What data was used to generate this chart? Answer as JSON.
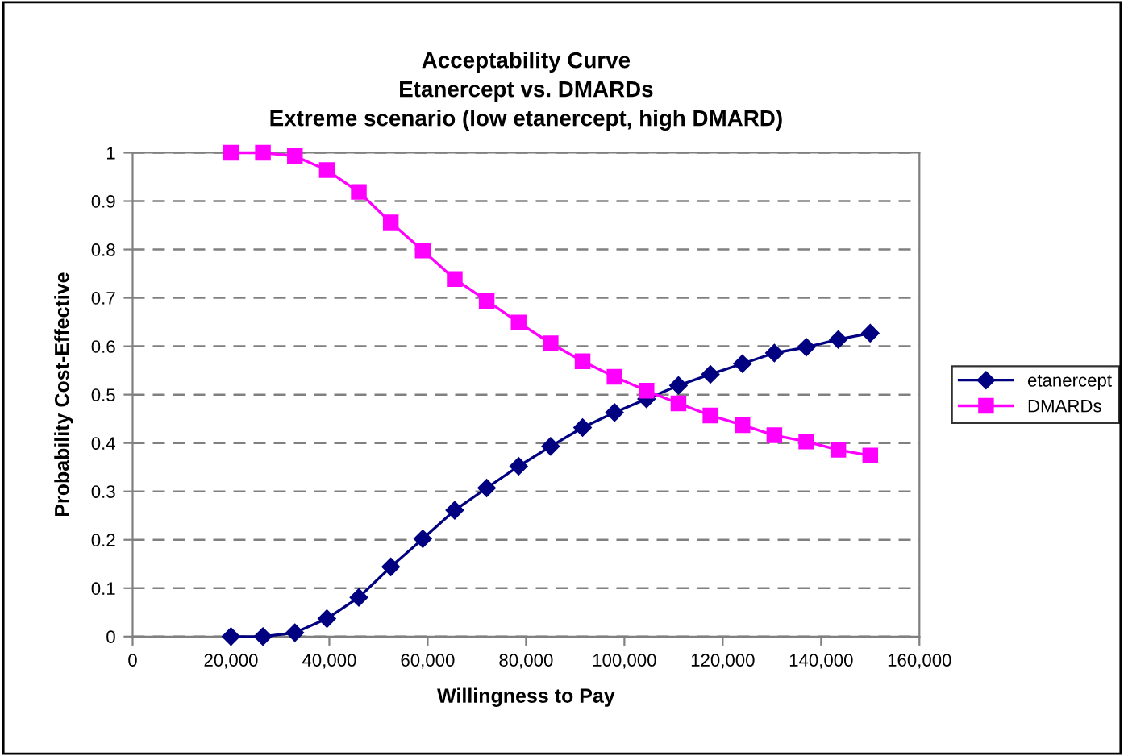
{
  "chart_data": {
    "type": "line",
    "title": "Acceptability Curve\nEtanercept vs. DMARDs\nExtreme scenario (low etanercept, high DMARD)",
    "xlabel": "Willingness to Pay",
    "ylabel": "Probability Cost-Effective",
    "x": [
      20000,
      26500,
      33000,
      39500,
      46000,
      52500,
      59000,
      65500,
      72000,
      78500,
      85000,
      91500,
      98000,
      104500,
      111000,
      117500,
      124000,
      130500,
      137000,
      143500,
      150000
    ],
    "series": [
      {
        "name": "etanercept",
        "color": "#000080",
        "marker": "diamond",
        "values": [
          0,
          0,
          0.008,
          0.037,
          0.081,
          0.144,
          0.202,
          0.261,
          0.307,
          0.352,
          0.393,
          0.432,
          0.463,
          0.491,
          0.519,
          0.542,
          0.564,
          0.586,
          0.598,
          0.614,
          0.627
        ]
      },
      {
        "name": "DMARDs",
        "color": "#ff00ff",
        "marker": "square",
        "values": [
          1,
          1,
          0.993,
          0.964,
          0.919,
          0.856,
          0.798,
          0.739,
          0.694,
          0.649,
          0.606,
          0.569,
          0.537,
          0.508,
          0.482,
          0.457,
          0.437,
          0.416,
          0.403,
          0.386,
          0.374
        ]
      }
    ],
    "xlim": [
      0,
      160000
    ],
    "xticks": [
      {
        "value": 0,
        "label": "0"
      },
      {
        "value": 20000,
        "label": "20,000"
      },
      {
        "value": 40000,
        "label": "40,000"
      },
      {
        "value": 60000,
        "label": "60,000"
      },
      {
        "value": 80000,
        "label": "80,000"
      },
      {
        "value": 100000,
        "label": "100,000"
      },
      {
        "value": 120000,
        "label": "120,000"
      },
      {
        "value": 140000,
        "label": "140,000"
      },
      {
        "value": 160000,
        "label": "160,000"
      }
    ],
    "ylim": [
      0,
      1
    ],
    "yticks": [
      0,
      0.1,
      0.2,
      0.3,
      0.4,
      0.5,
      0.6,
      0.7,
      0.8,
      0.9,
      1
    ],
    "grid": "y",
    "legend": "right",
    "line_style": "solid"
  }
}
